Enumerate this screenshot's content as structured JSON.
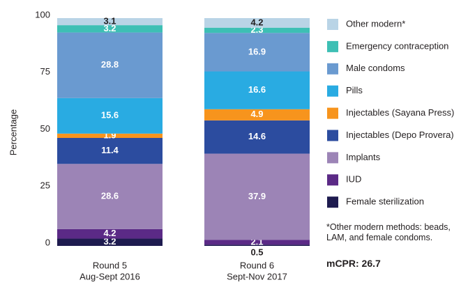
{
  "chart_data": {
    "type": "stacked_bar",
    "y_label": "Percentage",
    "categories": [
      [
        "Round 5",
        "Aug-Sept 2016"
      ],
      [
        "Round 6",
        "Sept-Nov 2017"
      ]
    ],
    "ylim": [
      0,
      100
    ],
    "yticks": [
      0,
      25,
      50,
      75,
      100
    ],
    "grid": false,
    "legend": "right",
    "series": [
      {
        "name": "Female sterilization",
        "color": "#1e1b4f",
        "label_color": "#ffffff",
        "values": [
          3.2,
          0.5
        ]
      },
      {
        "name": "IUD",
        "color": "#5b2a86",
        "label_color": "#ffffff",
        "values": [
          4.2,
          2.1
        ]
      },
      {
        "name": "Implants",
        "color": "#9c84b6",
        "label_color": "#ffffff",
        "values": [
          28.6,
          37.9
        ]
      },
      {
        "name": "Injectables (Depo Provera)",
        "color": "#2c4c9f",
        "label_color": "#ffffff",
        "values": [
          11.4,
          14.6
        ]
      },
      {
        "name": "Injectables (Sayana Press)",
        "color": "#f7941d",
        "label_color": "#ffffff",
        "values": [
          1.9,
          4.9
        ]
      },
      {
        "name": "Pills",
        "color": "#29abe2",
        "label_color": "#ffffff",
        "values": [
          15.6,
          16.6
        ]
      },
      {
        "name": "Male condoms",
        "color": "#6a9ad0",
        "label_color": "#ffffff",
        "values": [
          28.8,
          16.9
        ]
      },
      {
        "name": "Emergency contraception",
        "color": "#3dbfb4",
        "label_color": "#ffffff",
        "values": [
          3.2,
          2.3
        ]
      },
      {
        "name": "Other modern*",
        "color": "#b9d4e6",
        "label_color": "#231f20",
        "values": [
          3.1,
          4.2
        ]
      }
    ],
    "note": "*Other modern methods: beads, LAM, and female condoms.",
    "annotation": "mCPR: 26.7"
  }
}
